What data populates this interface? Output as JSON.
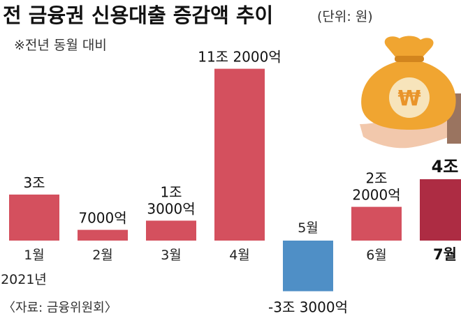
{
  "header": {
    "title": "전 금융권 신용대출 증감액 추이",
    "unit": "(단위: 원)",
    "subtitle": "※전년 동월 대비"
  },
  "footer": {
    "source": "〈자료: 금융위원회〉",
    "year_label": "2021년"
  },
  "illustration": {
    "icon": "money-bag-icon",
    "symbol": "₩"
  },
  "colors": {
    "positive": "#d4505e",
    "highlight": "#ad2c43",
    "negative": "#4f8fc6",
    "bag": "#f0a531",
    "hand": "#f2c8ac"
  },
  "chart_data": {
    "type": "bar",
    "title": "전 금융권 신용대출 증감액 추이",
    "subtitle": "※전년 동월 대비",
    "unit": "원",
    "categories": [
      "1월",
      "2월",
      "3월",
      "4월",
      "5월",
      "6월",
      "7월"
    ],
    "values": [
      3.0,
      0.7,
      1.3,
      11.2,
      -3.3,
      2.2,
      4.0
    ],
    "value_unit": "조 원",
    "labels": [
      "3조",
      "7000억",
      "1조|3000억",
      "11조 2000억",
      "-3조 3000억",
      "2조|2000억",
      "4조"
    ],
    "highlight_index": 6,
    "grid": false,
    "legend": "none"
  }
}
